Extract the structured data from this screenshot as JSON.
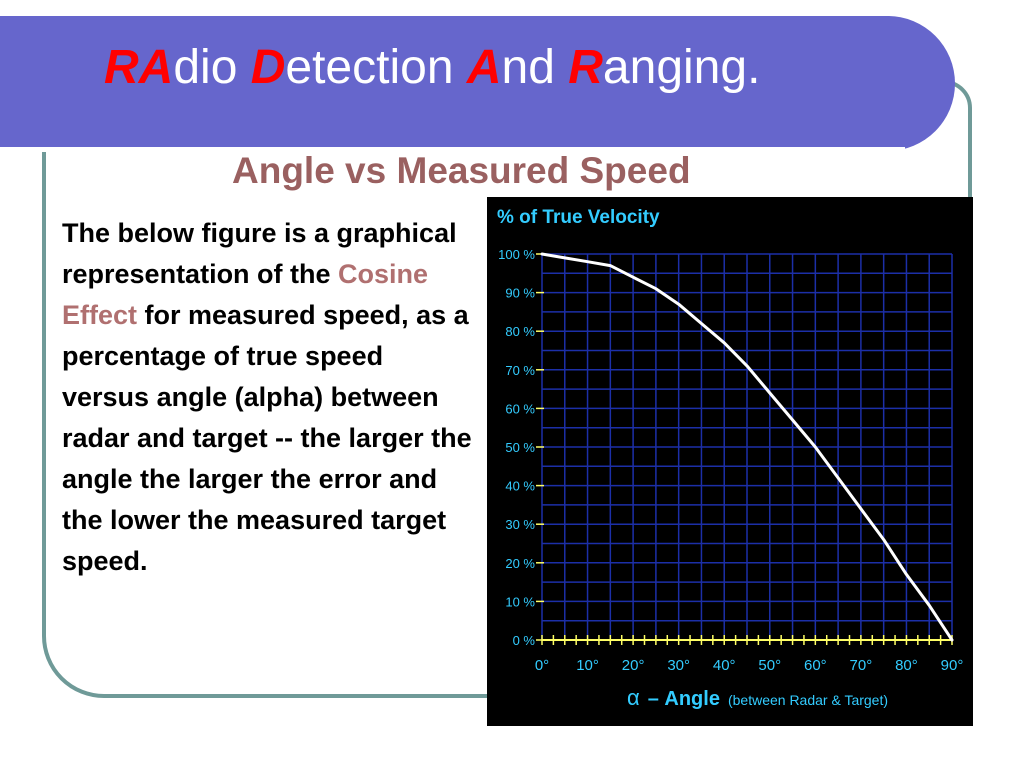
{
  "slide": {
    "title_parts": [
      {
        "text": "RA",
        "highlight": true
      },
      {
        "text": "dio ",
        "highlight": false
      },
      {
        "text": "D",
        "highlight": true
      },
      {
        "text": "etection ",
        "highlight": false
      },
      {
        "text": "A",
        "highlight": true
      },
      {
        "text": "nd ",
        "highlight": false
      },
      {
        "text": "R",
        "highlight": true
      },
      {
        "text": "anging.",
        "highlight": false
      }
    ],
    "subtitle": "Angle vs Measured Speed",
    "body": {
      "before": "The below figure is a graphical representation of the ",
      "emphasis": "Cosine Effect",
      "after": " for measured speed, as a percentage of true speed versus angle (alpha) between radar and target -- the larger the angle the larger the error and the lower the measured target speed."
    }
  },
  "colors": {
    "banner": "#6666cc",
    "title_highlight": "#ff0000",
    "subtitle": "#9a6060",
    "emphasis": "#b07070",
    "frame": "#6f9a98",
    "chart_background": "#000000",
    "chart_grid": "#1c2fa8",
    "chart_axis": "#ffff66",
    "chart_text": "#33ccff",
    "chart_line": "#ffffff"
  },
  "chart_data": {
    "type": "line",
    "title": "% of True Velocity",
    "xlabel_symbol": "α",
    "xlabel_main": "– Angle",
    "xlabel_note": "(between Radar & Target)",
    "x_ticks": [
      "0°",
      "10°",
      "20°",
      "30°",
      "40°",
      "50°",
      "60°",
      "70°",
      "80°",
      "90°"
    ],
    "y_ticks": [
      "0 %",
      "10 %",
      "20 %",
      "30 %",
      "40 %",
      "50 %",
      "60 %",
      "70 %",
      "80 %",
      "90 %",
      "100 %"
    ],
    "xlim": [
      0,
      90
    ],
    "ylim": [
      0,
      100
    ],
    "grid": true,
    "series": [
      {
        "x": [
          0,
          5,
          10,
          15,
          20,
          25,
          30,
          35,
          40,
          45,
          50,
          55,
          60,
          65,
          70,
          75,
          80,
          85,
          90
        ],
        "values": [
          100,
          99,
          98,
          97,
          94,
          91,
          87,
          82,
          77,
          71,
          64,
          57,
          50,
          42,
          34,
          26,
          17,
          9,
          0
        ]
      }
    ]
  }
}
